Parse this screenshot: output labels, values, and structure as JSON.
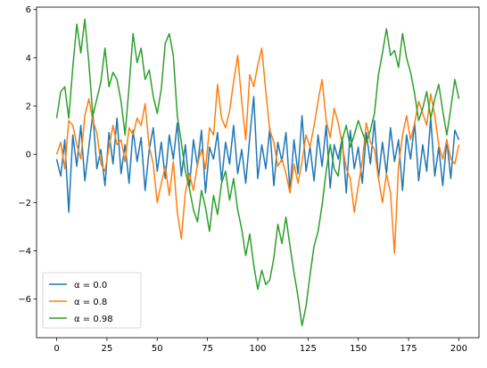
{
  "chart_data": {
    "type": "line",
    "title": "",
    "xlabel": "",
    "ylabel": "",
    "xlim": [
      -10,
      210
    ],
    "ylim": [
      -7.6,
      6.1
    ],
    "xticks": [
      0,
      25,
      50,
      75,
      100,
      125,
      150,
      175,
      200
    ],
    "yticks": [
      -6,
      -4,
      -2,
      0,
      2,
      4,
      6
    ],
    "grid": false,
    "legend_position": "lower-left",
    "series": [
      {
        "name": "α = 0.0",
        "color": "#1f77b4",
        "x": [
          0,
          2,
          4,
          6,
          8,
          10,
          12,
          14,
          16,
          18,
          20,
          22,
          24,
          26,
          28,
          30,
          32,
          34,
          36,
          38,
          40,
          42,
          44,
          46,
          48,
          50,
          52,
          54,
          56,
          58,
          60,
          62,
          64,
          66,
          68,
          70,
          72,
          74,
          76,
          78,
          80,
          82,
          84,
          86,
          88,
          90,
          92,
          94,
          96,
          98,
          100,
          102,
          104,
          106,
          108,
          110,
          112,
          114,
          116,
          118,
          120,
          122,
          124,
          126,
          128,
          130,
          132,
          134,
          136,
          138,
          140,
          142,
          144,
          146,
          148,
          150,
          152,
          154,
          156,
          158,
          160,
          162,
          164,
          166,
          168,
          170,
          172,
          174,
          176,
          178,
          180,
          182,
          184,
          186,
          188,
          190,
          192,
          194,
          196,
          198,
          200
        ],
        "values": [
          -0.2,
          -0.9,
          0.6,
          -2.4,
          0.8,
          -0.5,
          1.2,
          -1.1,
          0.3,
          1.7,
          -0.6,
          0.2,
          -1.3,
          0.9,
          -0.4,
          1.5,
          -0.8,
          0.4,
          -1.2,
          1.0,
          -0.3,
          0.7,
          -1.5,
          0.2,
          1.1,
          -0.7,
          0.5,
          -1.0,
          0.8,
          -0.2,
          1.3,
          -0.9,
          0.4,
          -1.4,
          0.6,
          -0.5,
          1.0,
          -1.6,
          0.3,
          -0.2,
          0.9,
          -1.1,
          0.5,
          -0.4,
          1.2,
          -0.8,
          0.2,
          -1.2,
          0.7,
          2.4,
          -1.0,
          0.4,
          -0.6,
          1.1,
          -1.3,
          0.5,
          -0.3,
          0.9,
          -1.5,
          0.6,
          -0.8,
          1.6,
          -0.7,
          0.3,
          -1.1,
          0.8,
          -0.5,
          1.2,
          -1.4,
          0.4,
          -0.2,
          0.7,
          -1.6,
          1.0,
          -0.6,
          0.3,
          -1.2,
          0.9,
          -0.4,
          1.4,
          -1.0,
          0.5,
          -0.8,
          1.1,
          -0.3,
          0.6,
          -1.5,
          0.8,
          -0.2,
          1.3,
          -1.1,
          0.4,
          -0.7,
          1.5,
          -0.9,
          0.3,
          -1.3,
          0.6,
          -1.0,
          1.0,
          0.6
        ]
      },
      {
        "name": "α = 0.8",
        "color": "#ff7f0e",
        "x": [
          0,
          2,
          4,
          6,
          8,
          10,
          12,
          14,
          16,
          18,
          20,
          22,
          24,
          26,
          28,
          30,
          32,
          34,
          36,
          38,
          40,
          42,
          44,
          46,
          48,
          50,
          52,
          54,
          56,
          58,
          60,
          62,
          64,
          66,
          68,
          70,
          72,
          74,
          76,
          78,
          80,
          82,
          84,
          86,
          88,
          90,
          92,
          94,
          96,
          98,
          100,
          102,
          104,
          106,
          108,
          110,
          112,
          114,
          116,
          118,
          120,
          122,
          124,
          126,
          128,
          130,
          132,
          134,
          136,
          138,
          140,
          142,
          144,
          146,
          148,
          150,
          152,
          154,
          156,
          158,
          160,
          162,
          164,
          166,
          168,
          170,
          172,
          174,
          176,
          178,
          180,
          182,
          184,
          186,
          188,
          190,
          192,
          194,
          196,
          198,
          200
        ],
        "values": [
          0.0,
          0.5,
          -0.6,
          1.4,
          1.2,
          0.4,
          -0.2,
          1.6,
          2.3,
          1.4,
          0.9,
          -0.4,
          -0.7,
          0.3,
          1.2,
          0.4,
          0.6,
          -0.3,
          1.1,
          0.8,
          1.5,
          1.2,
          2.1,
          0.3,
          -0.4,
          -2.0,
          -1.2,
          -0.5,
          -1.7,
          -0.3,
          -2.4,
          -3.5,
          -1.6,
          -0.8,
          -1.5,
          -0.4,
          0.2,
          -0.6,
          1.1,
          0.8,
          2.9,
          1.5,
          1.1,
          1.8,
          3.0,
          4.1,
          2.2,
          0.6,
          3.3,
          2.8,
          3.7,
          4.4,
          2.6,
          1.0,
          0.5,
          -0.5,
          -0.2,
          -0.8,
          -1.6,
          -0.4,
          -1.2,
          -0.3,
          0.8,
          0.3,
          1.2,
          2.2,
          3.1,
          1.4,
          0.7,
          1.9,
          1.3,
          0.4,
          -0.6,
          -1.0,
          -2.4,
          -1.3,
          -0.3,
          1.3,
          0.5,
          0.2,
          -1.0,
          -2.0,
          -0.8,
          -1.6,
          -4.1,
          -0.5,
          0.8,
          1.6,
          0.6,
          1.3,
          2.2,
          1.7,
          1.2,
          2.5,
          1.6,
          0.4,
          -0.2,
          0.6,
          -0.2,
          -0.4,
          0.4
        ]
      },
      {
        "name": "α = 0.98",
        "color": "#2ca02c",
        "x": [
          0,
          2,
          4,
          6,
          8,
          10,
          12,
          14,
          16,
          18,
          20,
          22,
          24,
          26,
          28,
          30,
          32,
          34,
          36,
          38,
          40,
          42,
          44,
          46,
          48,
          50,
          52,
          54,
          56,
          58,
          60,
          62,
          64,
          66,
          68,
          70,
          72,
          74,
          76,
          78,
          80,
          82,
          84,
          86,
          88,
          90,
          92,
          94,
          96,
          98,
          100,
          102,
          104,
          106,
          108,
          110,
          112,
          114,
          116,
          118,
          120,
          122,
          124,
          126,
          128,
          130,
          132,
          134,
          136,
          138,
          140,
          142,
          144,
          146,
          148,
          150,
          152,
          154,
          156,
          158,
          160,
          162,
          164,
          166,
          168,
          170,
          172,
          174,
          176,
          178,
          180,
          182,
          184,
          186,
          188,
          190,
          192,
          194,
          196,
          198,
          200
        ],
        "values": [
          1.5,
          2.6,
          2.8,
          1.5,
          3.6,
          5.4,
          4.2,
          5.6,
          3.8,
          1.6,
          2.3,
          3.0,
          4.4,
          2.8,
          3.4,
          3.1,
          2.2,
          0.8,
          2.8,
          5.0,
          3.8,
          4.4,
          3.1,
          3.5,
          2.4,
          1.7,
          2.7,
          4.6,
          5.0,
          4.1,
          1.6,
          0.5,
          -0.7,
          -1.4,
          -2.3,
          -2.8,
          -1.5,
          -2.2,
          -3.2,
          -1.7,
          -2.5,
          -1.2,
          -0.7,
          -1.9,
          -1.0,
          -2.3,
          -3.1,
          -4.2,
          -3.3,
          -4.6,
          -5.6,
          -4.8,
          -5.4,
          -5.2,
          -4.3,
          -2.9,
          -3.7,
          -2.6,
          -3.8,
          -4.9,
          -5.9,
          -7.1,
          -6.3,
          -5.0,
          -3.8,
          -3.2,
          -2.1,
          -0.7,
          0.4,
          -0.6,
          -0.9,
          0.6,
          1.2,
          0.3,
          0.8,
          1.4,
          0.9,
          0.5,
          1.0,
          1.7,
          3.3,
          4.2,
          5.2,
          4.1,
          4.3,
          3.6,
          5.0,
          4.0,
          3.4,
          2.5,
          1.4,
          1.9,
          2.6,
          1.5,
          2.3,
          2.9,
          1.8,
          0.8,
          1.9,
          3.1,
          2.3
        ]
      }
    ]
  }
}
